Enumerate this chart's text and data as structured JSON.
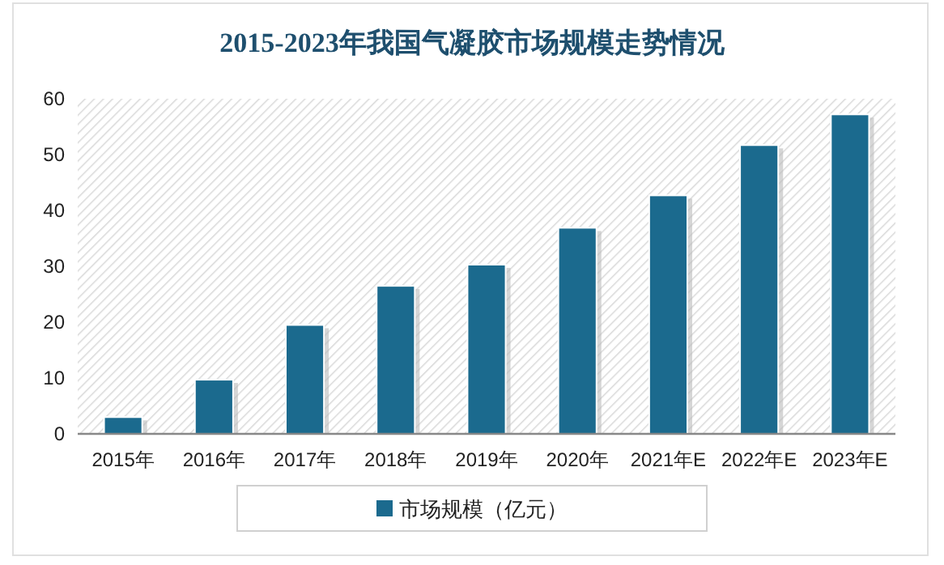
{
  "chart_data": {
    "type": "bar",
    "title": "2015-2023年我国气凝胶市场规模走势情况",
    "categories": [
      "2015年",
      "2016年",
      "2017年",
      "2018年",
      "2019年",
      "2020年",
      "2021年E",
      "2022年E",
      "2023年E"
    ],
    "series": [
      {
        "name": "市场规模（亿元）",
        "color": "#1b6a8e",
        "values": [
          3.0,
          9.7,
          19.5,
          26.5,
          30.3,
          36.9,
          42.7,
          51.7,
          57.2
        ]
      }
    ],
    "ylim": [
      0,
      60
    ],
    "yticks": [
      0,
      10,
      20,
      30,
      40,
      50,
      60
    ],
    "grid": false,
    "legend": "bottom"
  }
}
